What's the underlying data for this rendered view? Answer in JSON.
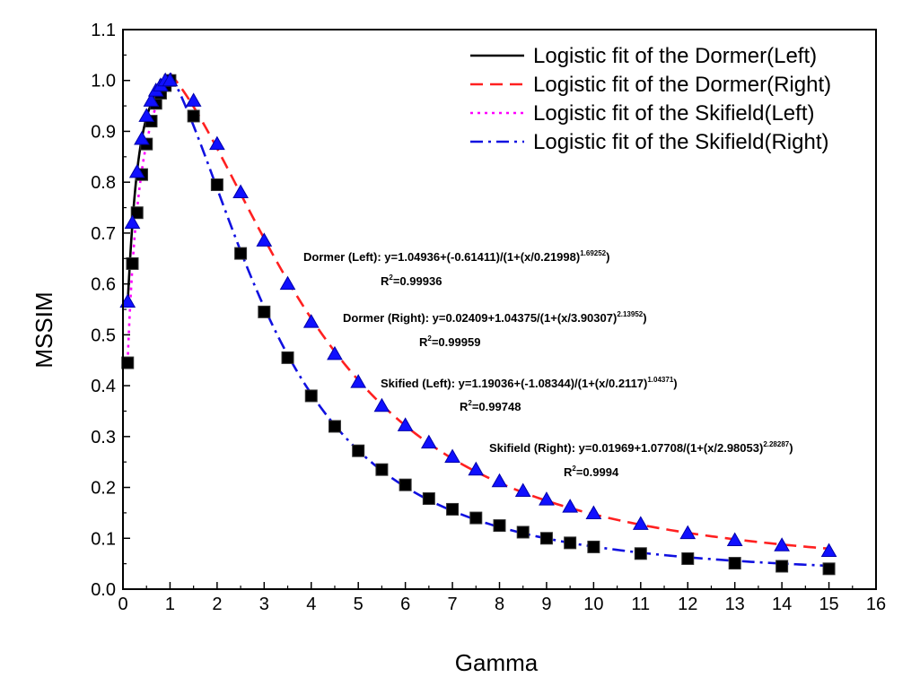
{
  "chart_data": {
    "type": "scatter",
    "title": "",
    "xlabel": "Gamma",
    "ylabel": "MSSIM",
    "xlim": [
      0,
      16
    ],
    "ylim": [
      0,
      1.1
    ],
    "x_ticks": [
      0,
      1,
      2,
      3,
      4,
      5,
      6,
      7,
      8,
      9,
      10,
      11,
      12,
      13,
      14,
      15,
      16
    ],
    "x_tick_labels": [
      "0",
      "1",
      "2",
      "3",
      "4",
      "5",
      "6",
      "7",
      "8",
      "9",
      "10",
      "11",
      "12",
      "13",
      "14",
      "15",
      "16"
    ],
    "y_ticks": [
      0,
      0.1,
      0.2,
      0.3,
      0.4,
      0.5,
      0.6,
      0.7,
      0.8,
      0.9,
      1.0,
      1.1
    ],
    "y_tick_labels": [
      "0.0",
      "0.1",
      "0.2",
      "0.3",
      "0.4",
      "0.5",
      "0.6",
      "0.7",
      "0.8",
      "0.9",
      "1.0",
      "1.1"
    ],
    "grid": false,
    "legend_position": "top-right",
    "colors": {
      "dormer_left": "#000000",
      "dormer_right": "#ff2020",
      "skifield_left": "#ff00ff",
      "skifield_right": "#1010e0",
      "square_marker": "#000000",
      "triangle_marker": "#1010ff"
    },
    "legend": [
      {
        "label": "Logistic fit of the Dormer(Left)",
        "color": "#000000",
        "dash": "solid"
      },
      {
        "label": "Logistic fit of the Dormer(Right)",
        "color": "#ff2020",
        "dash": "dash"
      },
      {
        "label": "Logistic fit of the Skifield(Left)",
        "color": "#ff00ff",
        "dash": "dot"
      },
      {
        "label": "Logistic fit of the Skifield(Right)",
        "color": "#1010e0",
        "dash": "dashdot"
      }
    ],
    "fits": {
      "dormer_left": {
        "a": 1.04936,
        "b": -0.61411,
        "c": 0.21998,
        "d": 1.69252,
        "x_range": [
          0.1,
          1.0
        ]
      },
      "dormer_right": {
        "a": 0.02409,
        "b": 1.04375,
        "c": 3.90307,
        "d": 2.13952,
        "x_range": [
          1.0,
          15.0
        ]
      },
      "skifield_left": {
        "a": 1.19036,
        "b": -1.08344,
        "c": 0.2117,
        "d": 1.04371,
        "x_range": [
          0.1,
          1.0
        ]
      },
      "skifield_right": {
        "a": 0.01969,
        "b": 1.07708,
        "c": 2.98053,
        "d": 2.28287,
        "x_range": [
          1.0,
          15.0
        ]
      }
    },
    "series": [
      {
        "marker": "square",
        "x": [
          0.1,
          0.2,
          0.3,
          0.4,
          0.5,
          0.6,
          0.7,
          0.8,
          0.9,
          1.0,
          1.5,
          2,
          2.5,
          3,
          3.5,
          4,
          4.5,
          5,
          5.5,
          6,
          6.5,
          7,
          7.5,
          8,
          8.5,
          9,
          9.5,
          10,
          11,
          12,
          13,
          14,
          15
        ],
        "y": [
          0.445,
          0.64,
          0.74,
          0.815,
          0.875,
          0.92,
          0.955,
          0.975,
          0.99,
          1.0,
          0.93,
          0.795,
          0.66,
          0.545,
          0.455,
          0.38,
          0.32,
          0.272,
          0.235,
          0.205,
          0.178,
          0.157,
          0.14,
          0.125,
          0.112,
          0.1,
          0.091,
          0.083,
          0.07,
          0.06,
          0.051,
          0.045,
          0.04
        ]
      },
      {
        "marker": "triangle",
        "x": [
          0.1,
          0.2,
          0.3,
          0.4,
          0.5,
          0.6,
          0.7,
          0.8,
          0.9,
          1.0,
          1.5,
          2,
          2.5,
          3,
          3.5,
          4,
          4.5,
          5,
          5.5,
          6,
          6.5,
          7,
          7.5,
          8,
          8.5,
          9,
          9.5,
          10,
          11,
          12,
          13,
          14,
          15
        ],
        "y": [
          0.565,
          0.72,
          0.82,
          0.885,
          0.93,
          0.96,
          0.98,
          0.99,
          1.0,
          1.0,
          0.96,
          0.875,
          0.78,
          0.685,
          0.6,
          0.525,
          0.462,
          0.407,
          0.36,
          0.322,
          0.288,
          0.26,
          0.235,
          0.212,
          0.193,
          0.176,
          0.162,
          0.149,
          0.128,
          0.11,
          0.096,
          0.086,
          0.075
        ]
      }
    ],
    "annotations": [
      {
        "equation": "Dormer (Left): y=1.04936+(-0.61411)/(1+(x/0.21998)",
        "exponent": "1.69252",
        "suffix": ")",
        "r2_prefix": "R",
        "r2_sup": "2",
        "r2_value": "=0.99936"
      },
      {
        "equation": "Dormer (Right): y=0.02409+1.04375/(1+(x/3.90307)",
        "exponent": "2.13952",
        "suffix": ")",
        "r2_prefix": "R",
        "r2_sup": "2",
        "r2_value": "=0.99959"
      },
      {
        "equation": "Skified (Left): y=1.19036+(-1.08344)/(1+(x/0.2117)",
        "exponent": "1.04371",
        "suffix": ")",
        "r2_prefix": "R",
        "r2_sup": "2",
        "r2_value": "=0.99748"
      },
      {
        "equation": "Skifield (Right): y=0.01969+1.07708/(1+(x/2.98053)",
        "exponent": "2.28287",
        "suffix": ")",
        "r2_prefix": "R",
        "r2_sup": "2",
        "r2_value": "=0.9994"
      }
    ]
  }
}
